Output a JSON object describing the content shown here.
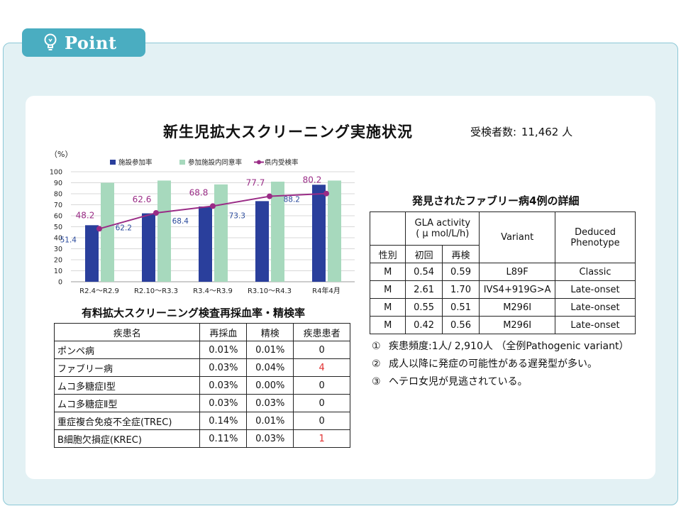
{
  "header": {
    "point_label": "Point"
  },
  "main": {
    "title": "新生児拡大スクリーニング実施状況",
    "examinees_label": "受検者数:",
    "examinees_value": "11,462 人"
  },
  "chart_data": {
    "type": "bar",
    "ylabel": "（%）",
    "ylim": [
      0,
      100
    ],
    "yticks": [
      0,
      10,
      20,
      30,
      40,
      50,
      60,
      70,
      80,
      90,
      100
    ],
    "categories": [
      "R2.4〜R2.9",
      "R2.10〜R3.3",
      "R3.4〜R3.9",
      "R3.10〜R4.3",
      "R4年4月"
    ],
    "series": [
      {
        "name": "施設参加率",
        "kind": "bar",
        "color": "#2a3f9c",
        "values": [
          51.4,
          62.2,
          68.4,
          73.3,
          88.2
        ],
        "labels": [
          "51.4",
          "62.2",
          "68.4",
          "73.3",
          "88.2"
        ]
      },
      {
        "name": "参加施設内同意率",
        "kind": "bar",
        "color": "#a7d9bd",
        "values": [
          90,
          92,
          88.5,
          91,
          92
        ]
      },
      {
        "name": "県内受検率",
        "kind": "line",
        "color": "#9a2c86",
        "values": [
          48.2,
          62.6,
          68.8,
          77.7,
          80.2
        ],
        "labels": [
          "48.2",
          "62.6",
          "68.8",
          "77.7",
          "80.2"
        ]
      }
    ],
    "legend_position": "top",
    "grid": true
  },
  "retest_table": {
    "title": "有料拡大スクリーニング検査再採血率・精検率",
    "headers": [
      "疾患名",
      "再採血",
      "精検",
      "疾患患者"
    ],
    "rows": [
      {
        "name": "ポンペ病",
        "retest": "0.01%",
        "detail": "0.01%",
        "patients": "0",
        "highlight": false
      },
      {
        "name": "ファブリー病",
        "retest": "0.03%",
        "detail": "0.04%",
        "patients": "4",
        "highlight": true
      },
      {
        "name": "ムコ多糖症Ⅰ型",
        "retest": "0.03%",
        "detail": "0.00%",
        "patients": "0",
        "highlight": false
      },
      {
        "name": "ムコ多糖症Ⅱ型",
        "retest": "0.03%",
        "detail": "0.03%",
        "patients": "0",
        "highlight": false
      },
      {
        "name": "重症複合免疫不全症(TREC)",
        "retest": "0.14%",
        "detail": "0.01%",
        "patients": "0",
        "highlight": false
      },
      {
        "name": "B細胞欠損症(KREC)",
        "retest": "0.11%",
        "detail": "0.03%",
        "patients": "1",
        "highlight": true
      }
    ]
  },
  "fabry_table": {
    "title": "発見されたファブリー病4例の詳細",
    "header_gla_line1": "GLA activity",
    "header_gla_line2": "( μ mol/L/h)",
    "header_variant": "Variant",
    "header_phenotype_line1": "Deduced",
    "header_phenotype_line2": "Phenotype",
    "header_sex": "性別",
    "header_initial": "初回",
    "header_retest": "再検",
    "rows": [
      {
        "sex": "M",
        "initial": "0.54",
        "retest": "0.59",
        "variant": "L89F",
        "phenotype": "Classic"
      },
      {
        "sex": "M",
        "initial": "2.61",
        "retest": "1.70",
        "variant": "IVS4+919G>A",
        "phenotype": "Late-onset"
      },
      {
        "sex": "M",
        "initial": "0.55",
        "retest": "0.51",
        "variant": "M296I",
        "phenotype": "Late-onset"
      },
      {
        "sex": "M",
        "initial": "0.42",
        "retest": "0.56",
        "variant": "M296I",
        "phenotype": "Late-onset"
      }
    ]
  },
  "notes": [
    {
      "marker": "①",
      "text": "疾患頻度:1人/ 2,910人 （全例Pathogenic variant）"
    },
    {
      "marker": "②",
      "text": "成人以降に発症の可能性がある遅発型が多い。"
    },
    {
      "marker": "③",
      "text": "ヘテロ女児が見逃されている。"
    }
  ]
}
